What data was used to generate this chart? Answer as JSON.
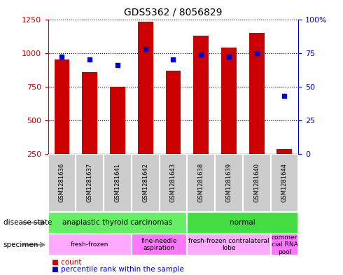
{
  "title": "GDS5362 / 8056829",
  "samples": [
    "GSM1281636",
    "GSM1281637",
    "GSM1281641",
    "GSM1281642",
    "GSM1281643",
    "GSM1281638",
    "GSM1281639",
    "GSM1281640",
    "GSM1281644"
  ],
  "counts": [
    950,
    860,
    750,
    1230,
    870,
    1130,
    1040,
    1150,
    285
  ],
  "percentiles": [
    72,
    70,
    66,
    78,
    70,
    74,
    72,
    75,
    43
  ],
  "ylim_left": [
    250,
    1250
  ],
  "yticks_left": [
    250,
    500,
    750,
    1000,
    1250
  ],
  "yticks_right_labels": [
    "0",
    "25",
    "50",
    "75",
    "100%"
  ],
  "yticks_right_vals": [
    0,
    25,
    50,
    75,
    100
  ],
  "bar_color": "#cc0000",
  "dot_color": "#0000cc",
  "ds_segments": [
    {
      "label": "anaplastic thyroid carcinomas",
      "start": 0,
      "end": 5,
      "color": "#66ee66"
    },
    {
      "label": "normal",
      "start": 5,
      "end": 9,
      "color": "#44dd44"
    }
  ],
  "sp_segments": [
    {
      "label": "fresh-frozen",
      "start": 0,
      "end": 3,
      "color": "#ffaaff"
    },
    {
      "label": "fine-needle\naspiration",
      "start": 3,
      "end": 5,
      "color": "#ff77ff"
    },
    {
      "label": "fresh-frozen contralateral\nlobe",
      "start": 5,
      "end": 8,
      "color": "#ffaaff"
    },
    {
      "label": "commer\ncial RNA\npool",
      "start": 8,
      "end": 9,
      "color": "#ff77ff"
    }
  ],
  "gray_box_color": "#cccccc",
  "tick_color_left": "#cc0000",
  "tick_color_right": "#0000cc"
}
